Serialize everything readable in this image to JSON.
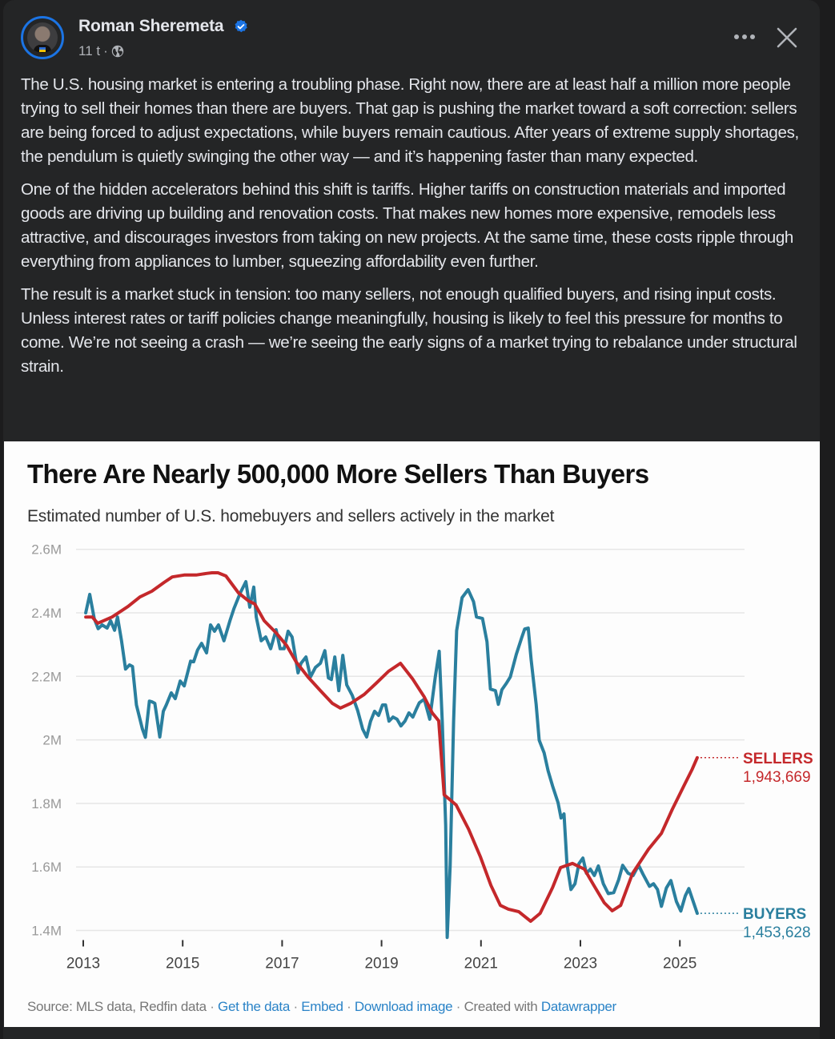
{
  "post": {
    "author": "Roman Sheremeta",
    "verified": true,
    "timestamp": "11 t",
    "separator": "·",
    "audience_icon": "globe-icon",
    "more_icon": "more-horizontal-icon",
    "close_icon": "close-icon",
    "paragraphs": [
      "The U.S. housing market is entering a troubling phase. Right now, there are at least half a million more people trying to sell their homes than there are buyers. That gap is pushing the market toward a soft correction: sellers are being forced to adjust expectations, while buyers remain cautious. After years of extreme supply shortages, the pendulum is quietly swinging the other way — and it’s happening faster than many expected.",
      "One of the hidden accelerators behind this shift is tariffs. Higher tariffs on construction materials and imported goods are driving up building and renovation costs. That makes new homes more expensive, remodels less attractive, and discourages investors from taking on new projects. At the same time, these costs ripple through everything from appliances to lumber, squeezing affordability even further.",
      "The result is a market stuck in tension: too many sellers, not enough qualified buyers, and rising input costs. Unless interest rates or tariff policies change meaningfully, housing is likely to feel this pressure for months to come. We’re not seeing a crash — we’re seeing the early signs of a market trying to rebalance under structural strain."
    ]
  },
  "colors": {
    "sellers": "#c4282b",
    "buyers": "#2a7f9e",
    "accent": "#1b74e4",
    "link": "#2a83c7"
  },
  "chart_data": {
    "type": "line",
    "title": "There Are Nearly 500,000 More Sellers Than Buyers",
    "subtitle": "Estimated number of U.S. homebuyers and sellers actively in the market",
    "xlabel": "",
    "ylabel": "",
    "x_ticks": [
      "2013",
      "2015",
      "2017",
      "2019",
      "2021",
      "2023",
      "2025"
    ],
    "x_tick_values": [
      2013,
      2015,
      2017,
      2019,
      2021,
      2023,
      2025
    ],
    "y_ticks": [
      "2.6M",
      "2.4M",
      "2.2M",
      "2M",
      "1.8M",
      "1.6M",
      "1.4M"
    ],
    "y_tick_values": [
      2.6,
      2.4,
      2.2,
      2.0,
      1.8,
      1.6,
      1.4
    ],
    "ylim": [
      1.4,
      2.6
    ],
    "xlim": [
      2013,
      2025.4
    ],
    "units": "millions",
    "grid": true,
    "legend": "direct-labels-right",
    "series": [
      {
        "name": "SELLERS",
        "end_label": "1,943,669",
        "points": [
          [
            2013.05,
            2.387
          ],
          [
            2013.18,
            2.387
          ],
          [
            2013.29,
            2.367
          ],
          [
            2013.58,
            2.387
          ],
          [
            2013.9,
            2.42
          ],
          [
            2014.14,
            2.45
          ],
          [
            2014.38,
            2.468
          ],
          [
            2014.63,
            2.496
          ],
          [
            2014.79,
            2.513
          ],
          [
            2015.03,
            2.519
          ],
          [
            2015.27,
            2.519
          ],
          [
            2015.48,
            2.524
          ],
          [
            2015.59,
            2.526
          ],
          [
            2015.71,
            2.526
          ],
          [
            2015.87,
            2.516
          ],
          [
            2016.12,
            2.463
          ],
          [
            2016.32,
            2.438
          ],
          [
            2016.45,
            2.428
          ],
          [
            2016.64,
            2.375
          ],
          [
            2016.88,
            2.337
          ],
          [
            2017.09,
            2.297
          ],
          [
            2017.28,
            2.246
          ],
          [
            2017.52,
            2.198
          ],
          [
            2017.77,
            2.155
          ],
          [
            2018.01,
            2.115
          ],
          [
            2018.17,
            2.1
          ],
          [
            2018.38,
            2.115
          ],
          [
            2018.65,
            2.143
          ],
          [
            2018.89,
            2.178
          ],
          [
            2019.14,
            2.216
          ],
          [
            2019.38,
            2.241
          ],
          [
            2019.62,
            2.193
          ],
          [
            2019.86,
            2.135
          ],
          [
            2020.02,
            2.085
          ],
          [
            2020.15,
            2.06
          ],
          [
            2020.26,
            1.827
          ],
          [
            2020.5,
            1.795
          ],
          [
            2020.75,
            1.719
          ],
          [
            2020.99,
            1.631
          ],
          [
            2021.2,
            1.542
          ],
          [
            2021.39,
            1.479
          ],
          [
            2021.55,
            1.467
          ],
          [
            2021.76,
            1.459
          ],
          [
            2022.0,
            1.429
          ],
          [
            2022.19,
            1.454
          ],
          [
            2022.44,
            1.535
          ],
          [
            2022.6,
            1.598
          ],
          [
            2022.84,
            1.611
          ],
          [
            2023.08,
            1.593
          ],
          [
            2023.27,
            1.542
          ],
          [
            2023.48,
            1.487
          ],
          [
            2023.64,
            1.462
          ],
          [
            2023.81,
            1.479
          ],
          [
            2024.05,
            1.58
          ],
          [
            2024.37,
            1.656
          ],
          [
            2024.63,
            1.706
          ],
          [
            2024.85,
            1.782
          ],
          [
            2025.09,
            1.858
          ],
          [
            2025.25,
            1.908
          ],
          [
            2025.35,
            1.944
          ]
        ]
      },
      {
        "name": "BUYERS",
        "end_label": "1,453,628",
        "points": [
          [
            2013.05,
            2.4
          ],
          [
            2013.13,
            2.458
          ],
          [
            2013.22,
            2.382
          ],
          [
            2013.3,
            2.35
          ],
          [
            2013.38,
            2.362
          ],
          [
            2013.48,
            2.352
          ],
          [
            2013.55,
            2.375
          ],
          [
            2013.63,
            2.345
          ],
          [
            2013.69,
            2.387
          ],
          [
            2013.77,
            2.312
          ],
          [
            2013.85,
            2.223
          ],
          [
            2013.93,
            2.236
          ],
          [
            2013.99,
            2.231
          ],
          [
            2014.07,
            2.11
          ],
          [
            2014.19,
            2.034
          ],
          [
            2014.25,
            2.008
          ],
          [
            2014.33,
            2.122
          ],
          [
            2014.38,
            2.12
          ],
          [
            2014.44,
            2.115
          ],
          [
            2014.54,
            2.009
          ],
          [
            2014.61,
            2.09
          ],
          [
            2014.67,
            2.11
          ],
          [
            2014.77,
            2.148
          ],
          [
            2014.85,
            2.13
          ],
          [
            2014.95,
            2.185
          ],
          [
            2015.03,
            2.17
          ],
          [
            2015.16,
            2.248
          ],
          [
            2015.22,
            2.246
          ],
          [
            2015.3,
            2.283
          ],
          [
            2015.38,
            2.304
          ],
          [
            2015.48,
            2.274
          ],
          [
            2015.56,
            2.362
          ],
          [
            2015.64,
            2.342
          ],
          [
            2015.72,
            2.362
          ],
          [
            2015.83,
            2.312
          ],
          [
            2015.95,
            2.375
          ],
          [
            2016.03,
            2.413
          ],
          [
            2016.16,
            2.463
          ],
          [
            2016.27,
            2.498
          ],
          [
            2016.35,
            2.418
          ],
          [
            2016.43,
            2.481
          ],
          [
            2016.48,
            2.387
          ],
          [
            2016.58,
            2.312
          ],
          [
            2016.67,
            2.324
          ],
          [
            2016.77,
            2.287
          ],
          [
            2016.88,
            2.347
          ],
          [
            2016.96,
            2.287
          ],
          [
            2017.04,
            2.287
          ],
          [
            2017.12,
            2.342
          ],
          [
            2017.2,
            2.324
          ],
          [
            2017.32,
            2.211
          ],
          [
            2017.38,
            2.241
          ],
          [
            2017.48,
            2.261
          ],
          [
            2017.57,
            2.198
          ],
          [
            2017.67,
            2.228
          ],
          [
            2017.77,
            2.241
          ],
          [
            2017.86,
            2.281
          ],
          [
            2017.93,
            2.195
          ],
          [
            2017.99,
            2.19
          ],
          [
            2018.06,
            2.261
          ],
          [
            2018.14,
            2.155
          ],
          [
            2018.22,
            2.266
          ],
          [
            2018.3,
            2.173
          ],
          [
            2018.41,
            2.14
          ],
          [
            2018.52,
            2.092
          ],
          [
            2018.62,
            2.034
          ],
          [
            2018.7,
            2.009
          ],
          [
            2018.78,
            2.059
          ],
          [
            2018.86,
            2.09
          ],
          [
            2018.94,
            2.077
          ],
          [
            2019.02,
            2.11
          ],
          [
            2019.08,
            2.11
          ],
          [
            2019.15,
            2.059
          ],
          [
            2019.23,
            2.072
          ],
          [
            2019.31,
            2.065
          ],
          [
            2019.39,
            2.044
          ],
          [
            2019.47,
            2.059
          ],
          [
            2019.55,
            2.085
          ],
          [
            2019.63,
            2.072
          ],
          [
            2019.7,
            2.097
          ],
          [
            2019.76,
            2.117
          ],
          [
            2019.86,
            2.128
          ],
          [
            2019.97,
            2.065
          ],
          [
            2020.08,
            2.198
          ],
          [
            2020.16,
            2.279
          ],
          [
            2020.22,
            2.059
          ],
          [
            2020.29,
            1.731
          ],
          [
            2020.32,
            1.378
          ],
          [
            2020.38,
            1.605
          ],
          [
            2020.45,
            2.059
          ],
          [
            2020.51,
            2.344
          ],
          [
            2020.62,
            2.448
          ],
          [
            2020.74,
            2.473
          ],
          [
            2020.85,
            2.435
          ],
          [
            2020.91,
            2.387
          ],
          [
            2021.03,
            2.382
          ],
          [
            2021.12,
            2.309
          ],
          [
            2021.19,
            2.16
          ],
          [
            2021.29,
            2.155
          ],
          [
            2021.35,
            2.112
          ],
          [
            2021.42,
            2.158
          ],
          [
            2021.51,
            2.178
          ],
          [
            2021.59,
            2.198
          ],
          [
            2021.71,
            2.269
          ],
          [
            2021.82,
            2.322
          ],
          [
            2021.88,
            2.349
          ],
          [
            2021.95,
            2.352
          ],
          [
            2022.01,
            2.251
          ],
          [
            2022.11,
            2.112
          ],
          [
            2022.17,
            1.999
          ],
          [
            2022.27,
            1.959
          ],
          [
            2022.35,
            1.903
          ],
          [
            2022.44,
            1.855
          ],
          [
            2022.55,
            1.802
          ],
          [
            2022.61,
            1.754
          ],
          [
            2022.67,
            1.767
          ],
          [
            2022.73,
            1.61
          ],
          [
            2022.81,
            1.529
          ],
          [
            2022.89,
            1.547
          ],
          [
            2022.97,
            1.61
          ],
          [
            2023.05,
            1.628
          ],
          [
            2023.12,
            1.58
          ],
          [
            2023.2,
            1.593
          ],
          [
            2023.28,
            1.573
          ],
          [
            2023.36,
            1.603
          ],
          [
            2023.46,
            1.547
          ],
          [
            2023.56,
            1.516
          ],
          [
            2023.67,
            1.519
          ],
          [
            2023.77,
            1.56
          ],
          [
            2023.85,
            1.605
          ],
          [
            2023.96,
            1.58
          ],
          [
            2024.06,
            1.573
          ],
          [
            2024.17,
            1.605
          ],
          [
            2024.26,
            1.577
          ],
          [
            2024.39,
            1.539
          ],
          [
            2024.47,
            1.547
          ],
          [
            2024.55,
            1.529
          ],
          [
            2024.63,
            1.476
          ],
          [
            2024.73,
            1.534
          ],
          [
            2024.82,
            1.557
          ],
          [
            2024.93,
            1.491
          ],
          [
            2025.02,
            1.461
          ],
          [
            2025.11,
            1.509
          ],
          [
            2025.18,
            1.532
          ],
          [
            2025.35,
            1.454
          ]
        ]
      }
    ],
    "source_text": "Source: MLS data, Redfin data",
    "links": [
      "Get the data",
      "Embed",
      "Download image"
    ],
    "created_with_text": "Created with",
    "created_with_link": "Datawrapper",
    "footer_separator": "·"
  }
}
